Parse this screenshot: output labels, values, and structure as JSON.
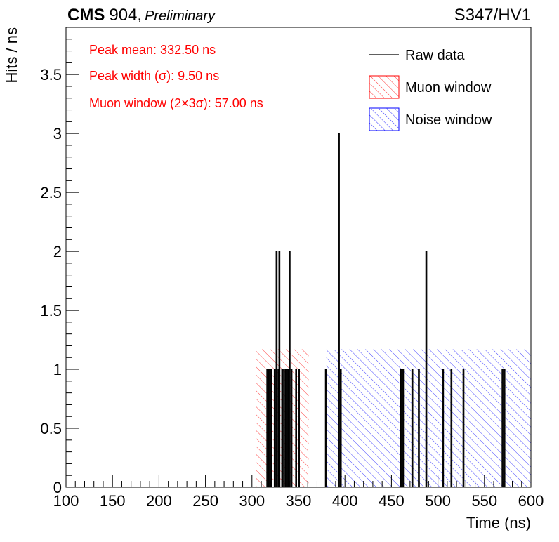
{
  "header": {
    "experiment": "CMS",
    "facility": "904,",
    "status": "Preliminary",
    "run_label": "S347/HV1"
  },
  "annotations": [
    {
      "text": "Peak mean: 332.50 ns",
      "color": "#ff0000"
    },
    {
      "text": "Peak width (σ): 9.50 ns",
      "color": "#ff0000"
    },
    {
      "text": "Muon window (2×3σ): 57.00 ns",
      "color": "#ff0000"
    }
  ],
  "legend": {
    "placement": "top-right",
    "entries": [
      {
        "label": "Raw data",
        "style": "line",
        "color": "#000000"
      },
      {
        "label": "Muon window",
        "style": "hatch",
        "color": "#ff0000"
      },
      {
        "label": "Noise window",
        "style": "hatch",
        "color": "#0000ff"
      }
    ]
  },
  "chart_data": {
    "type": "histogram",
    "xlabel": "Time (ns)",
    "ylabel": "Hits / ns",
    "xlim": [
      100,
      600
    ],
    "ylim": [
      0,
      3.9
    ],
    "x_ticks": [
      100,
      150,
      200,
      250,
      300,
      350,
      400,
      450,
      500,
      550,
      600
    ],
    "y_ticks": [
      0,
      0.5,
      1,
      1.5,
      2,
      2.5,
      3,
      3.5
    ],
    "y_tick_labels": [
      "0",
      "0.5",
      "1",
      "1.5",
      "2",
      "2.5",
      "3",
      "3.5"
    ],
    "grid": false,
    "bin_width_ns": 1,
    "series": [
      {
        "name": "Raw data",
        "color": "#000000",
        "bins": [
          {
            "x": 316,
            "y": 1
          },
          {
            "x": 318,
            "y": 1
          },
          {
            "x": 320,
            "y": 1
          },
          {
            "x": 324,
            "y": 1
          },
          {
            "x": 326,
            "y": 2
          },
          {
            "x": 328,
            "y": 1
          },
          {
            "x": 329,
            "y": 2
          },
          {
            "x": 332,
            "y": 1
          },
          {
            "x": 334,
            "y": 1
          },
          {
            "x": 336,
            "y": 1
          },
          {
            "x": 338,
            "y": 1
          },
          {
            "x": 340,
            "y": 2
          },
          {
            "x": 342,
            "y": 1
          },
          {
            "x": 347,
            "y": 1
          },
          {
            "x": 350,
            "y": 1
          },
          {
            "x": 379,
            "y": 1
          },
          {
            "x": 393,
            "y": 3
          },
          {
            "x": 395,
            "y": 1
          },
          {
            "x": 460,
            "y": 1
          },
          {
            "x": 462,
            "y": 1
          },
          {
            "x": 472,
            "y": 1
          },
          {
            "x": 479,
            "y": 1
          },
          {
            "x": 487,
            "y": 2
          },
          {
            "x": 505,
            "y": 1
          },
          {
            "x": 514,
            "y": 1
          },
          {
            "x": 527,
            "y": 1
          },
          {
            "x": 569,
            "y": 1
          },
          {
            "x": 571,
            "y": 1
          }
        ]
      }
    ],
    "shaded_regions": [
      {
        "name": "Muon window",
        "x_start": 304,
        "x_end": 361,
        "y_top": 1.17,
        "color": "#ff0000"
      },
      {
        "name": "Noise window",
        "x_start": 380,
        "x_end": 600,
        "y_top": 1.17,
        "color": "#0000ff"
      }
    ]
  }
}
